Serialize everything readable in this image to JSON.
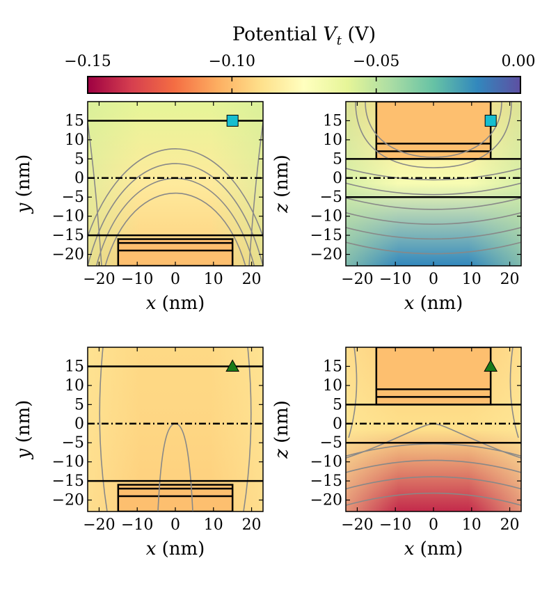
{
  "chart_data": {
    "type": "heatmap",
    "colorbar": {
      "title": "Potential V_t (V)",
      "title_parts": {
        "prefix": "Potential ",
        "symbol": "V",
        "subscript": "t",
        "suffix": " (V)"
      },
      "range": [
        -0.15,
        0.0
      ],
      "ticks": [
        -0.15,
        -0.1,
        -0.05,
        0.0
      ],
      "tick_labels": [
        "−0.15",
        "−0.10",
        "−0.05",
        "0.00"
      ],
      "colormap": "Spectral"
    },
    "panels": [
      {
        "name": "top-left",
        "xlabel_symbol": "x",
        "xlabel_unit": "(nm)",
        "ylabel_symbol": "y",
        "ylabel_unit": "(nm)",
        "xlim": [
          -23,
          23
        ],
        "ylim": [
          -23,
          20
        ],
        "xticks": [
          -20,
          -10,
          0,
          10,
          20
        ],
        "xtick_labels": [
          "−20",
          "−10",
          "0",
          "10",
          "20"
        ],
        "yticks": [
          15,
          10,
          5,
          0,
          -5,
          -10,
          -15,
          -20
        ],
        "ytick_labels": [
          "15",
          "10",
          "5",
          "0",
          "−5",
          "−10",
          "−15",
          "−20"
        ],
        "field": {
          "center_value": -0.085,
          "edge_value": -0.055,
          "bottom_value": -0.095,
          "top_value": -0.06
        },
        "horizontal_lines": [
          15,
          -15
        ],
        "dashdot_line": 0,
        "inner_box": {
          "x": [
            -15,
            15
          ],
          "y": [
            -23,
            -16
          ],
          "lines": [
            -17,
            -19
          ],
          "value": -0.1
        },
        "marker": {
          "shape": "square",
          "x": 15,
          "y": 15,
          "color": "#17becf"
        }
      },
      {
        "name": "top-right",
        "xlabel_symbol": "x",
        "xlabel_unit": "(nm)",
        "ylabel_symbol": "z",
        "ylabel_unit": "(nm)",
        "xlim": [
          -23,
          23
        ],
        "ylim": [
          -23,
          20
        ],
        "xticks": [
          -20,
          -10,
          0,
          10,
          20
        ],
        "xtick_labels": [
          "−20",
          "−10",
          "0",
          "10",
          "20"
        ],
        "yticks": [
          15,
          10,
          5,
          0,
          -5,
          -10,
          -15,
          -20
        ],
        "ytick_labels": [
          "15",
          "10",
          "5",
          "0",
          "−5",
          "−10",
          "−15",
          "−20"
        ],
        "field": {
          "center_value": -0.07,
          "edge_value": -0.05,
          "bottom_value": -0.015,
          "top_value": -0.09
        },
        "horizontal_lines": [
          5,
          -5
        ],
        "dashdot_line": 0,
        "inner_box": {
          "x": [
            -15,
            15
          ],
          "y": [
            5,
            20
          ],
          "lines": [
            9,
            7
          ],
          "value": -0.1
        },
        "marker": {
          "shape": "square",
          "x": 15,
          "y": 15,
          "color": "#17becf"
        }
      },
      {
        "name": "bottom-left",
        "xlabel_symbol": "x",
        "xlabel_unit": "(nm)",
        "ylabel_symbol": "y",
        "ylabel_unit": "(nm)",
        "xlim": [
          -23,
          23
        ],
        "ylim": [
          -23,
          20
        ],
        "xticks": [
          -20,
          -10,
          0,
          10,
          20
        ],
        "xtick_labels": [
          "−20",
          "−10",
          "0",
          "10",
          "20"
        ],
        "yticks": [
          15,
          10,
          5,
          0,
          -5,
          -10,
          -15,
          -20
        ],
        "ytick_labels": [
          "15",
          "10",
          "5",
          "0",
          "−5",
          "−10",
          "−15",
          "−20"
        ],
        "field": {
          "center_value": -0.093,
          "edge_value": -0.085,
          "bottom_value": -0.095,
          "top_value": -0.092
        },
        "horizontal_lines": [
          15,
          -15
        ],
        "dashdot_line": 0,
        "inner_box": {
          "x": [
            -15,
            15
          ],
          "y": [
            -23,
            -16
          ],
          "lines": [
            -17,
            -19
          ],
          "value": -0.1
        },
        "marker": {
          "shape": "triangle",
          "x": 15,
          "y": 15,
          "color": "#1a7a1a"
        }
      },
      {
        "name": "bottom-right",
        "xlabel_symbol": "x",
        "xlabel_unit": "(nm)",
        "ylabel_symbol": "z",
        "ylabel_unit": "(nm)",
        "xlim": [
          -23,
          23
        ],
        "ylim": [
          -23,
          20
        ],
        "xticks": [
          -20,
          -10,
          0,
          10,
          20
        ],
        "xtick_labels": [
          "−20",
          "−10",
          "0",
          "10",
          "20"
        ],
        "yticks": [
          15,
          10,
          5,
          0,
          -5,
          -10,
          -15,
          -20
        ],
        "ytick_labels": [
          "15",
          "10",
          "5",
          "0",
          "−5",
          "−10",
          "−15",
          "−20"
        ],
        "field": {
          "center_value": -0.09,
          "edge_value": -0.085,
          "bottom_value": -0.14,
          "top_value": -0.095
        },
        "horizontal_lines": [
          5,
          -5
        ],
        "dashdot_line": 0,
        "inner_box": {
          "x": [
            -15,
            15
          ],
          "y": [
            5,
            20
          ],
          "lines": [
            9,
            7
          ],
          "value": -0.1
        },
        "marker": {
          "shape": "triangle",
          "x": 15,
          "y": 15,
          "color": "#1a7a1a"
        }
      }
    ]
  }
}
